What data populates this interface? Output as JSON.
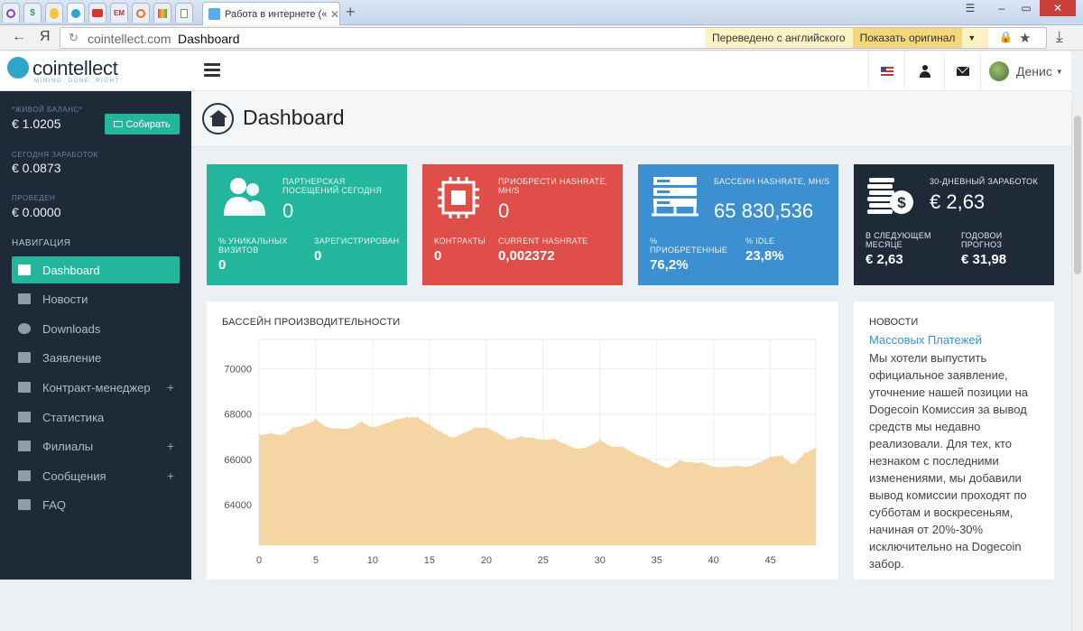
{
  "browser": {
    "tab_title": "Работа в интернете («",
    "url_domain": "cointellect.com",
    "page_title": "Dashboard",
    "translate_status": "Переведено с английского",
    "show_original": "Показать оригинал",
    "yandex_glyph": "Я"
  },
  "app": {
    "logo_name": "cointellect",
    "logo_slogan": "MINING. DONE. RIGHT",
    "user_name": "Денис"
  },
  "sidebar": {
    "live_balance_label": "*ЖИВОЙ БАЛАНС*",
    "live_balance_value": "€ 1.0205",
    "collect_button": "Собирать",
    "today_earnings_label": "СЕГОДНЯ ЗАРАБОТОК",
    "today_earnings_value": "€ 0.0873",
    "paid_label": "ПРОВЕДЕН",
    "paid_value": "€ 0.0000",
    "nav_label": "НАВИГАЦИЯ",
    "items": [
      {
        "label": "Dashboard"
      },
      {
        "label": "Новости"
      },
      {
        "label": "Downloads"
      },
      {
        "label": "Заявление"
      },
      {
        "label": "Контракт-менеджер"
      },
      {
        "label": "Статистика"
      },
      {
        "label": "Филиалы"
      },
      {
        "label": "Сообщения"
      },
      {
        "label": "FAQ"
      }
    ]
  },
  "page": {
    "title": "Dashboard"
  },
  "cards": {
    "partner": {
      "title": "ПАРТНЕРСКАЯ ПОСЕЩЕНИЙ СЕГОДНЯ",
      "value": "0",
      "sub1_label": "% УНИКАЛЬНЫХ ВИЗИТОВ",
      "sub1_value": "0",
      "sub2_label": "ЗАРЕГИСТРИРОВАН",
      "sub2_value": "0"
    },
    "hashrate": {
      "title": "ПРИОБРЕСТИ HASHRATE, MH/S",
      "value": "0",
      "sub1_label": "КОНТРАКТЫ",
      "sub1_value": "0",
      "sub2_label": "CURRENT HASHRATE",
      "sub2_value": "0,002372"
    },
    "pool": {
      "title": "БАССЕИН HASHRATE, MH/S",
      "value": "65 830,536",
      "sub1_label": "% ПРИОБРЕТЕННЫЕ",
      "sub1_value": "76,2%",
      "sub2_label": "% IDLE",
      "sub2_value": "23,8%"
    },
    "earnings": {
      "title": "30-ДНЕВНЫЙ ЗАРАБОТОК",
      "value": "€ 2,63",
      "sub1_label": "В СЛЕДУЮЩЕМ МЕСЯЦЕ",
      "sub1_value": "€ 2,63",
      "sub2_label": "ГОДОВОИ ПРОГНОЗ",
      "sub2_value": "€ 31,98"
    }
  },
  "colors": {
    "teal": "#22b79c",
    "red": "#df4e48",
    "blue": "#3d90d0",
    "dark": "#1f2a38",
    "sidebar": "#1e2a38",
    "chart_fill": "#f6d5a5"
  },
  "news": {
    "title": "НОВОСТИ",
    "link": "Массовых Платежей",
    "body": "Мы хотели выпустить официальное заявление, уточнение нашей позиции на Dogecoin Комиссия за вывод средств мы недавно реализовали. Для тех, кто незнаком с последними изменениями, мы добавили вывод комиссии проходят по субботам и воскресеньям, начиная от 20%-30% исключительно на Dogecoin забор."
  },
  "chart_data": {
    "type": "area",
    "title": "БАССЕЙН ПРОИЗВОДИТЕЛЬНОСТИ",
    "xlabel": "",
    "ylabel": "",
    "xlim": [
      0,
      49
    ],
    "ylim": [
      62200,
      71300
    ],
    "xticks": [
      0,
      5,
      10,
      15,
      20,
      25,
      30,
      35,
      40,
      45
    ],
    "yticks": [
      64000,
      66000,
      68000,
      70000
    ],
    "grid": true,
    "x": [
      0,
      1,
      2,
      3,
      4,
      5,
      6,
      7,
      8,
      9,
      10,
      11,
      12,
      13,
      14,
      15,
      16,
      17,
      18,
      19,
      20,
      21,
      22,
      23,
      24,
      25,
      26,
      27,
      28,
      29,
      30,
      31,
      32,
      33,
      34,
      35,
      36,
      37,
      38,
      39,
      40,
      41,
      42,
      43,
      44,
      45,
      46,
      47,
      48,
      49
    ],
    "values": [
      67050,
      67150,
      67050,
      67400,
      67500,
      67750,
      67400,
      67350,
      67350,
      67650,
      67400,
      67550,
      67750,
      67850,
      67850,
      67500,
      67200,
      66950,
      67150,
      67400,
      67400,
      67150,
      66850,
      67000,
      66950,
      66850,
      66900,
      66650,
      66450,
      66550,
      66850,
      66550,
      66550,
      66250,
      66050,
      65800,
      65600,
      65950,
      65850,
      65850,
      65650,
      65650,
      65700,
      65650,
      65850,
      66100,
      66150,
      65750,
      66250,
      66500
    ]
  }
}
